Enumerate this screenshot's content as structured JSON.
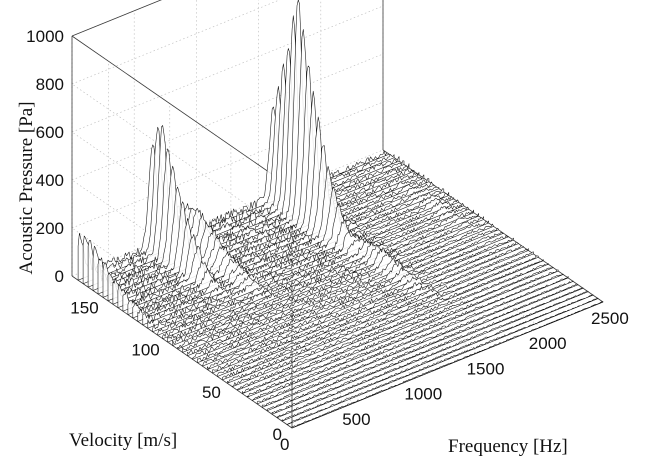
{
  "chart_data": {
    "type": "waterfall-3d",
    "title": "",
    "xlabel": "Frequency  [Hz]",
    "ylabel": "Velocity [m/s]",
    "zlabel": "Acoustic Pressure [Pa]",
    "x_ticks": [
      "0",
      "500",
      "1000",
      "1500",
      "2000",
      "2500"
    ],
    "y_ticks": [
      "0",
      "50",
      "100",
      "150"
    ],
    "z_ticks": [
      "0",
      "200",
      "400",
      "600",
      "800",
      "1000"
    ],
    "xlim": [
      0,
      2500
    ],
    "ylim": [
      0,
      180
    ],
    "zlim": [
      0,
      1000
    ],
    "grid": true,
    "velocity_range": [
      0,
      175
    ],
    "trace_count": 44,
    "peaks": [
      {
        "frequency": 15,
        "pressure": 190,
        "velocity": 170
      },
      {
        "frequency": 600,
        "pressure": 560,
        "velocity": 168
      },
      {
        "frequency": 800,
        "pressure": 180,
        "velocity": 160
      },
      {
        "frequency": 1570,
        "pressure": 920,
        "velocity": 155
      },
      {
        "frequency": 1640,
        "pressure": 60,
        "velocity": 95
      },
      {
        "frequency": 2330,
        "pressure": 40,
        "velocity": 120
      }
    ]
  }
}
